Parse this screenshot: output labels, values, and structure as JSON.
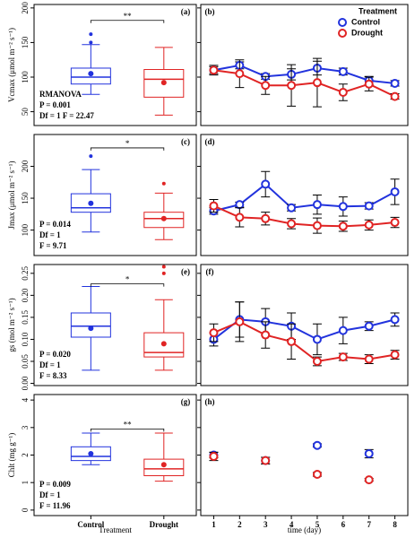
{
  "chart_data": [
    {
      "type": "box",
      "label": "(a)",
      "y_label": "Vcmax (μmol m⁻² s⁻¹)",
      "ylim": [
        30,
        205
      ],
      "yticks": [
        50,
        100,
        150,
        200
      ],
      "boxes": [
        {
          "color": "#2233dd",
          "min": 75,
          "q1": 90,
          "median": 100,
          "q3": 113,
          "max": 147,
          "mean": 105,
          "outliers": [
            150,
            162
          ]
        },
        {
          "color": "#e02424",
          "min": 45,
          "q1": 71,
          "median": 97,
          "q3": 111,
          "max": 143,
          "mean": 92,
          "outliers": []
        }
      ],
      "significance": {
        "label": "**",
        "value": 182
      },
      "stats": [
        "RMANOVA",
        "P = 0.001",
        "Df = 1 F = 22.47"
      ]
    },
    {
      "type": "line",
      "label": "(b)",
      "ylim": [
        30,
        205
      ],
      "yticks": [
        50,
        100,
        150,
        200
      ],
      "ytick_labels": false,
      "xlim": [
        0.5,
        8.5
      ],
      "x": [
        1,
        2,
        3,
        4,
        5,
        6,
        7,
        8
      ],
      "legend_title": "Treatment",
      "legend": "upper right",
      "series": [
        {
          "name": "Control",
          "color": "#2233dd",
          "values": [
            110,
            117,
            101,
            104,
            113,
            108,
            95,
            91
          ],
          "errors": [
            7,
            5,
            4,
            8,
            10,
            5,
            6,
            4
          ]
        },
        {
          "name": "Drought",
          "color": "#e02424",
          "values": [
            110,
            105,
            88,
            88,
            92,
            78,
            90,
            72
          ],
          "errors": [
            5,
            20,
            13,
            30,
            35,
            12,
            10,
            4
          ]
        }
      ]
    },
    {
      "type": "box",
      "label": "(c)",
      "y_label": "Jmax (μmol m⁻² s⁻¹)",
      "ylim": [
        60,
        250
      ],
      "yticks": [
        100,
        150,
        200
      ],
      "boxes": [
        {
          "color": "#2233dd",
          "min": 97,
          "q1": 128,
          "median": 135,
          "q3": 157,
          "max": 195,
          "mean": 142,
          "outliers": [
            216
          ]
        },
        {
          "color": "#e02424",
          "min": 85,
          "q1": 104,
          "median": 118,
          "q3": 128,
          "max": 158,
          "mean": 118,
          "outliers": [
            173
          ]
        }
      ],
      "significance": {
        "label": "*",
        "value": 229
      },
      "stats": [
        "P = 0.014",
        "Df = 1",
        "F = 9.71"
      ]
    },
    {
      "type": "line",
      "label": "(d)",
      "ylim": [
        60,
        250
      ],
      "yticks": [
        100,
        150,
        200
      ],
      "ytick_labels": false,
      "xlim": [
        0.5,
        8.5
      ],
      "x": [
        1,
        2,
        3,
        4,
        5,
        6,
        7,
        8
      ],
      "series": [
        {
          "color": "#2233dd",
          "values": [
            130,
            140,
            172,
            135,
            140,
            137,
            138,
            160
          ],
          "errors": [
            5,
            4,
            20,
            5,
            15,
            15,
            5,
            20
          ]
        },
        {
          "color": "#e02424",
          "values": [
            138,
            120,
            118,
            110,
            107,
            106,
            108,
            112
          ],
          "errors": [
            10,
            15,
            10,
            8,
            12,
            8,
            8,
            8
          ]
        }
      ]
    },
    {
      "type": "box",
      "label": "(e)",
      "y_label": "gs (mol m⁻² s⁻¹)",
      "ylim": [
        -0.005,
        0.27
      ],
      "yticks": [
        {
          "value": 0,
          "label": "0.00"
        },
        {
          "value": 0.05,
          "label": "0.05"
        },
        {
          "value": 0.1,
          "label": "0.10"
        },
        {
          "value": 0.15,
          "label": "0.15"
        },
        {
          "value": 0.2,
          "label": "0.20"
        },
        {
          "value": 0.25,
          "label": "0.25"
        }
      ],
      "boxes": [
        {
          "color": "#2233dd",
          "min": 0.03,
          "q1": 0.105,
          "median": 0.13,
          "q3": 0.16,
          "max": 0.22,
          "mean": 0.125,
          "outliers": []
        },
        {
          "color": "#e02424",
          "min": 0.03,
          "q1": 0.06,
          "median": 0.07,
          "q3": 0.115,
          "max": 0.19,
          "mean": 0.09,
          "outliers": [
            0.25,
            0.265
          ]
        }
      ],
      "significance": {
        "label": "*",
        "value": 0.226
      },
      "stats": [
        "P = 0.020",
        "Df = 1",
        "F = 8.33"
      ]
    },
    {
      "type": "line",
      "label": "(f)",
      "ylim": [
        -0.005,
        0.27
      ],
      "yticks": [
        0,
        0.05,
        0.1,
        0.15,
        0.2,
        0.25
      ],
      "ytick_labels": false,
      "xlim": [
        0.5,
        8.5
      ],
      "x": [
        1,
        2,
        3,
        4,
        5,
        6,
        7,
        8
      ],
      "series": [
        {
          "color": "#2233dd",
          "values": [
            0.1,
            0.145,
            0.14,
            0.13,
            0.1,
            0.12,
            0.13,
            0.145
          ],
          "errors": [
            0.015,
            0.04,
            0.03,
            0.03,
            0.035,
            0.03,
            0.01,
            0.015
          ]
        },
        {
          "color": "#e02424",
          "values": [
            0.115,
            0.14,
            0.11,
            0.095,
            0.05,
            0.06,
            0.055,
            0.065
          ],
          "errors": [
            0.02,
            0.045,
            0.03,
            0.04,
            0.01,
            0.008,
            0.01,
            0.01
          ]
        }
      ]
    },
    {
      "type": "box",
      "label": "(g)",
      "y_label": "Chlt (mg g⁻¹)",
      "x_label": "Treatment",
      "categories": [
        "Control",
        "Drought"
      ],
      "ylim": [
        -0.2,
        4.2
      ],
      "yticks": [
        0,
        1,
        2,
        3,
        4
      ],
      "boxes": [
        {
          "color": "#2233dd",
          "min": 1.65,
          "q1": 1.8,
          "median": 1.95,
          "q3": 2.3,
          "max": 2.8,
          "mean": 2.05,
          "outliers": []
        },
        {
          "color": "#e02424",
          "min": 1.05,
          "q1": 1.25,
          "median": 1.5,
          "q3": 1.85,
          "max": 2.8,
          "mean": 1.65,
          "outliers": []
        }
      ],
      "significance": {
        "label": "**",
        "value": 2.95
      },
      "stats": [
        "P = 0.009",
        "Df = 1",
        "F = 11.96"
      ]
    },
    {
      "type": "line",
      "label": "(h)",
      "connect": false,
      "x_label": "time (day)",
      "ylim": [
        -0.2,
        4.2
      ],
      "yticks": [
        0,
        1,
        2,
        3,
        4
      ],
      "ytick_labels": false,
      "xlim": [
        0.5,
        8.5
      ],
      "xticks": [
        1,
        2,
        3,
        4,
        5,
        6,
        7,
        8
      ],
      "x": [
        1,
        3,
        5,
        7
      ],
      "series": [
        {
          "color": "#2233dd",
          "values": [
            2.0,
            1.8,
            2.35,
            2.05
          ],
          "errors": [
            0.1,
            0.12,
            0.06,
            0.15
          ]
        },
        {
          "color": "#e02424",
          "values": [
            1.95,
            1.8,
            1.3,
            1.1
          ],
          "errors": [
            0.15,
            0.12,
            0.07,
            0.05
          ]
        }
      ]
    }
  ]
}
